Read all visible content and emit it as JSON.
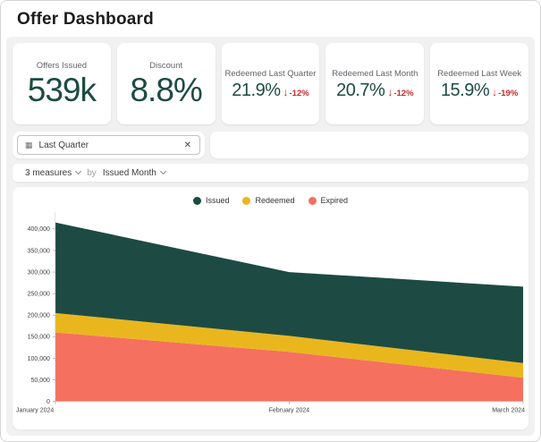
{
  "header": {
    "title": "Offer Dashboard"
  },
  "kpi_cards": [
    {
      "label": "Offers Issued",
      "value": "539k",
      "delta": null
    },
    {
      "label": "Discount",
      "value": "8.8%",
      "delta": null
    },
    {
      "label": "Redeemed Last Quarter",
      "value": "21.9%",
      "delta": "-12%"
    },
    {
      "label": "Redeemed Last Month",
      "value": "20.7%",
      "delta": "-12%"
    },
    {
      "label": "Redeemed Last Week",
      "value": "15.9%",
      "delta": "-19%"
    }
  ],
  "filters": {
    "chip_label": "Last Quarter"
  },
  "icons": {
    "calendar": "▦",
    "close": "✕",
    "down_arrow": "↓"
  },
  "measures_bar": {
    "measures_label": "3 measures",
    "by_label": "by",
    "dimension_label": "Issued Month"
  },
  "legend": [
    {
      "label": "Issued",
      "color": "#1d4b43"
    },
    {
      "label": "Redeemed",
      "color": "#e9b71d"
    },
    {
      "label": "Expired",
      "color": "#f5705f"
    }
  ],
  "chart_data": {
    "type": "area",
    "stacked": true,
    "x": [
      "January 2024",
      "February 2024",
      "March 2024"
    ],
    "series": [
      {
        "name": "Expired",
        "color": "#f5705f",
        "values": [
          160000,
          115000,
          55000
        ]
      },
      {
        "name": "Redeemed",
        "color": "#e9b71d",
        "values": [
          45000,
          37000,
          34000
        ]
      },
      {
        "name": "Issued",
        "color": "#1d4b43",
        "values": [
          210000,
          148000,
          177000
        ]
      }
    ],
    "ylim": [
      0,
      430000
    ],
    "ytick_step": 50000,
    "ytick_max": 400000,
    "grid": false,
    "legend_position": "top-center"
  },
  "colors": {
    "accent_teal": "#1d4b43",
    "accent_yellow": "#e9b71d",
    "accent_coral": "#f5705f",
    "negative_red": "#c52a2a",
    "content_bg": "#f1f1f2"
  }
}
